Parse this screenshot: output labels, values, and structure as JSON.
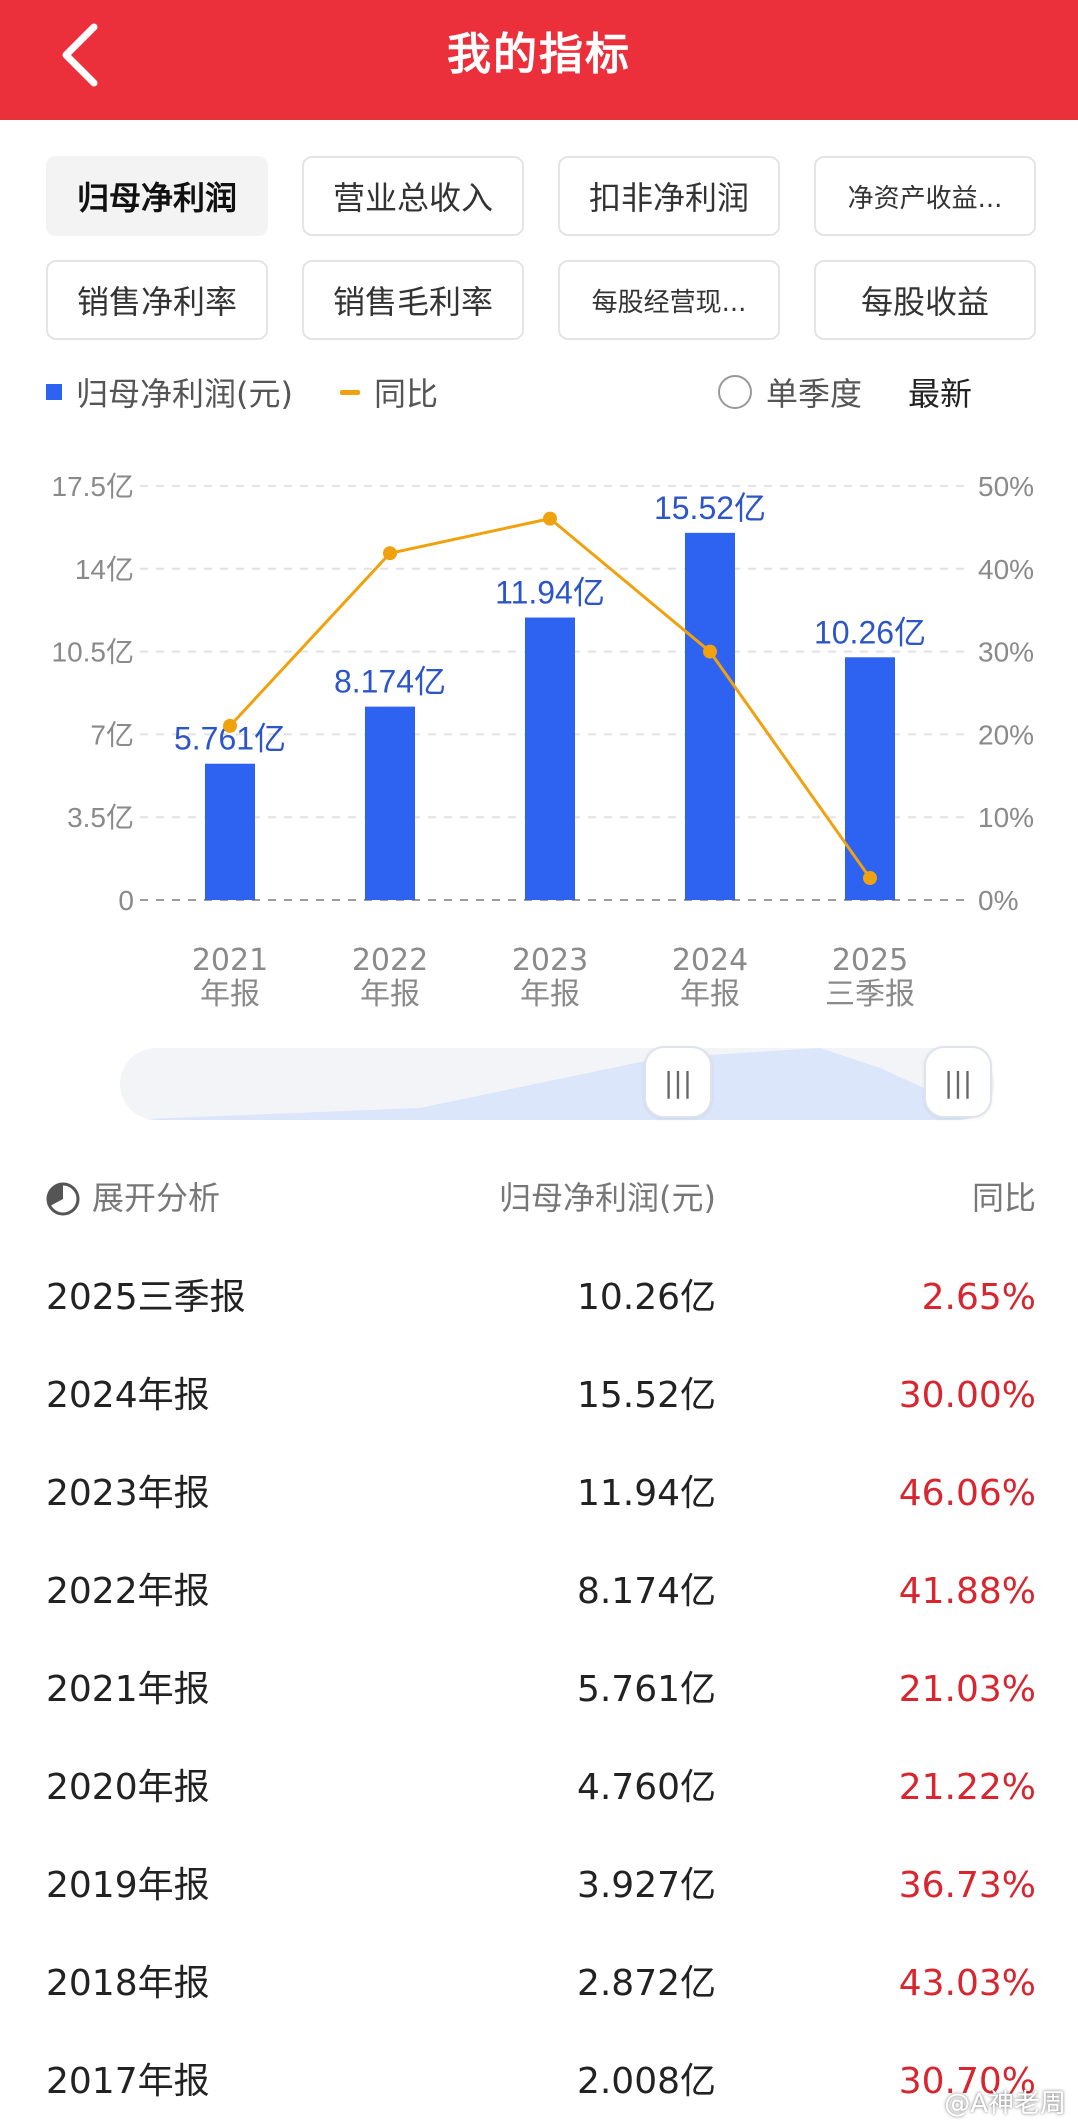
{
  "header": {
    "title": "我的指标",
    "back_icon": "chevron-left-icon"
  },
  "chips": [
    {
      "label": "归母净利润",
      "active": true
    },
    {
      "label": "营业总收入",
      "active": false
    },
    {
      "label": "扣非净利润",
      "active": false
    },
    {
      "label": "净资产收益...",
      "active": false
    },
    {
      "label": "销售净利率",
      "active": false
    },
    {
      "label": "销售毛利率",
      "active": false
    },
    {
      "label": "每股经营现...",
      "active": false
    },
    {
      "label": "每股收益",
      "active": false
    }
  ],
  "legend": {
    "bar_label": "归母净利润(元)",
    "line_label": "同比",
    "toggle_label": "单季度",
    "latest_label": "最新"
  },
  "colors": {
    "header": "#eb2f3b",
    "bar": "#2e62f0",
    "line": "#f0a20e",
    "negative": "#d7262f"
  },
  "chart_data": {
    "type": "bar",
    "categories": [
      "2021年报",
      "2022年报",
      "2023年报",
      "2024年报",
      "2025三季报"
    ],
    "category_lines": [
      [
        "2021",
        "年报"
      ],
      [
        "2022",
        "年报"
      ],
      [
        "2023",
        "年报"
      ],
      [
        "2024",
        "年报"
      ],
      [
        "2025",
        "三季报"
      ]
    ],
    "series": [
      {
        "name": "归母净利润(元)",
        "type": "bar",
        "axis": "left",
        "values": [
          5.761,
          8.174,
          11.94,
          15.52,
          10.26
        ],
        "labels": [
          "5.761亿",
          "8.174亿",
          "11.94亿",
          "15.52亿",
          "10.26亿"
        ]
      },
      {
        "name": "同比",
        "type": "line",
        "axis": "right",
        "values": [
          21.03,
          41.88,
          46.06,
          30.0,
          2.65
        ]
      }
    ],
    "y_left": {
      "ticks": [
        0,
        3.5,
        7,
        10.5,
        14,
        17.5
      ],
      "tick_labels": [
        "0",
        "3.5亿",
        "7亿",
        "10.5亿",
        "14亿",
        "17.5亿"
      ],
      "lim": [
        0,
        17.5
      ]
    },
    "y_right": {
      "ticks": [
        0,
        10,
        20,
        30,
        40,
        50
      ],
      "tick_labels": [
        "0%",
        "10%",
        "20%",
        "30%",
        "40%",
        "50%"
      ],
      "lim": [
        0,
        50
      ]
    },
    "grid": true
  },
  "table": {
    "header": {
      "analysis": "展开分析",
      "value_col": "归母净利润(元)",
      "yoy_col": "同比"
    },
    "rows": [
      {
        "period": "2025三季报",
        "value": "10.26亿",
        "yoy": "2.65%"
      },
      {
        "period": "2024年报",
        "value": "15.52亿",
        "yoy": "30.00%"
      },
      {
        "period": "2023年报",
        "value": "11.94亿",
        "yoy": "46.06%"
      },
      {
        "period": "2022年报",
        "value": "8.174亿",
        "yoy": "41.88%"
      },
      {
        "period": "2021年报",
        "value": "5.761亿",
        "yoy": "21.03%"
      },
      {
        "period": "2020年报",
        "value": "4.760亿",
        "yoy": "21.22%"
      },
      {
        "period": "2019年报",
        "value": "3.927亿",
        "yoy": "36.73%"
      },
      {
        "period": "2018年报",
        "value": "2.872亿",
        "yoy": "43.03%"
      },
      {
        "period": "2017年报",
        "value": "2.008亿",
        "yoy": "30.70%"
      }
    ]
  },
  "watermark": "@A神老周"
}
